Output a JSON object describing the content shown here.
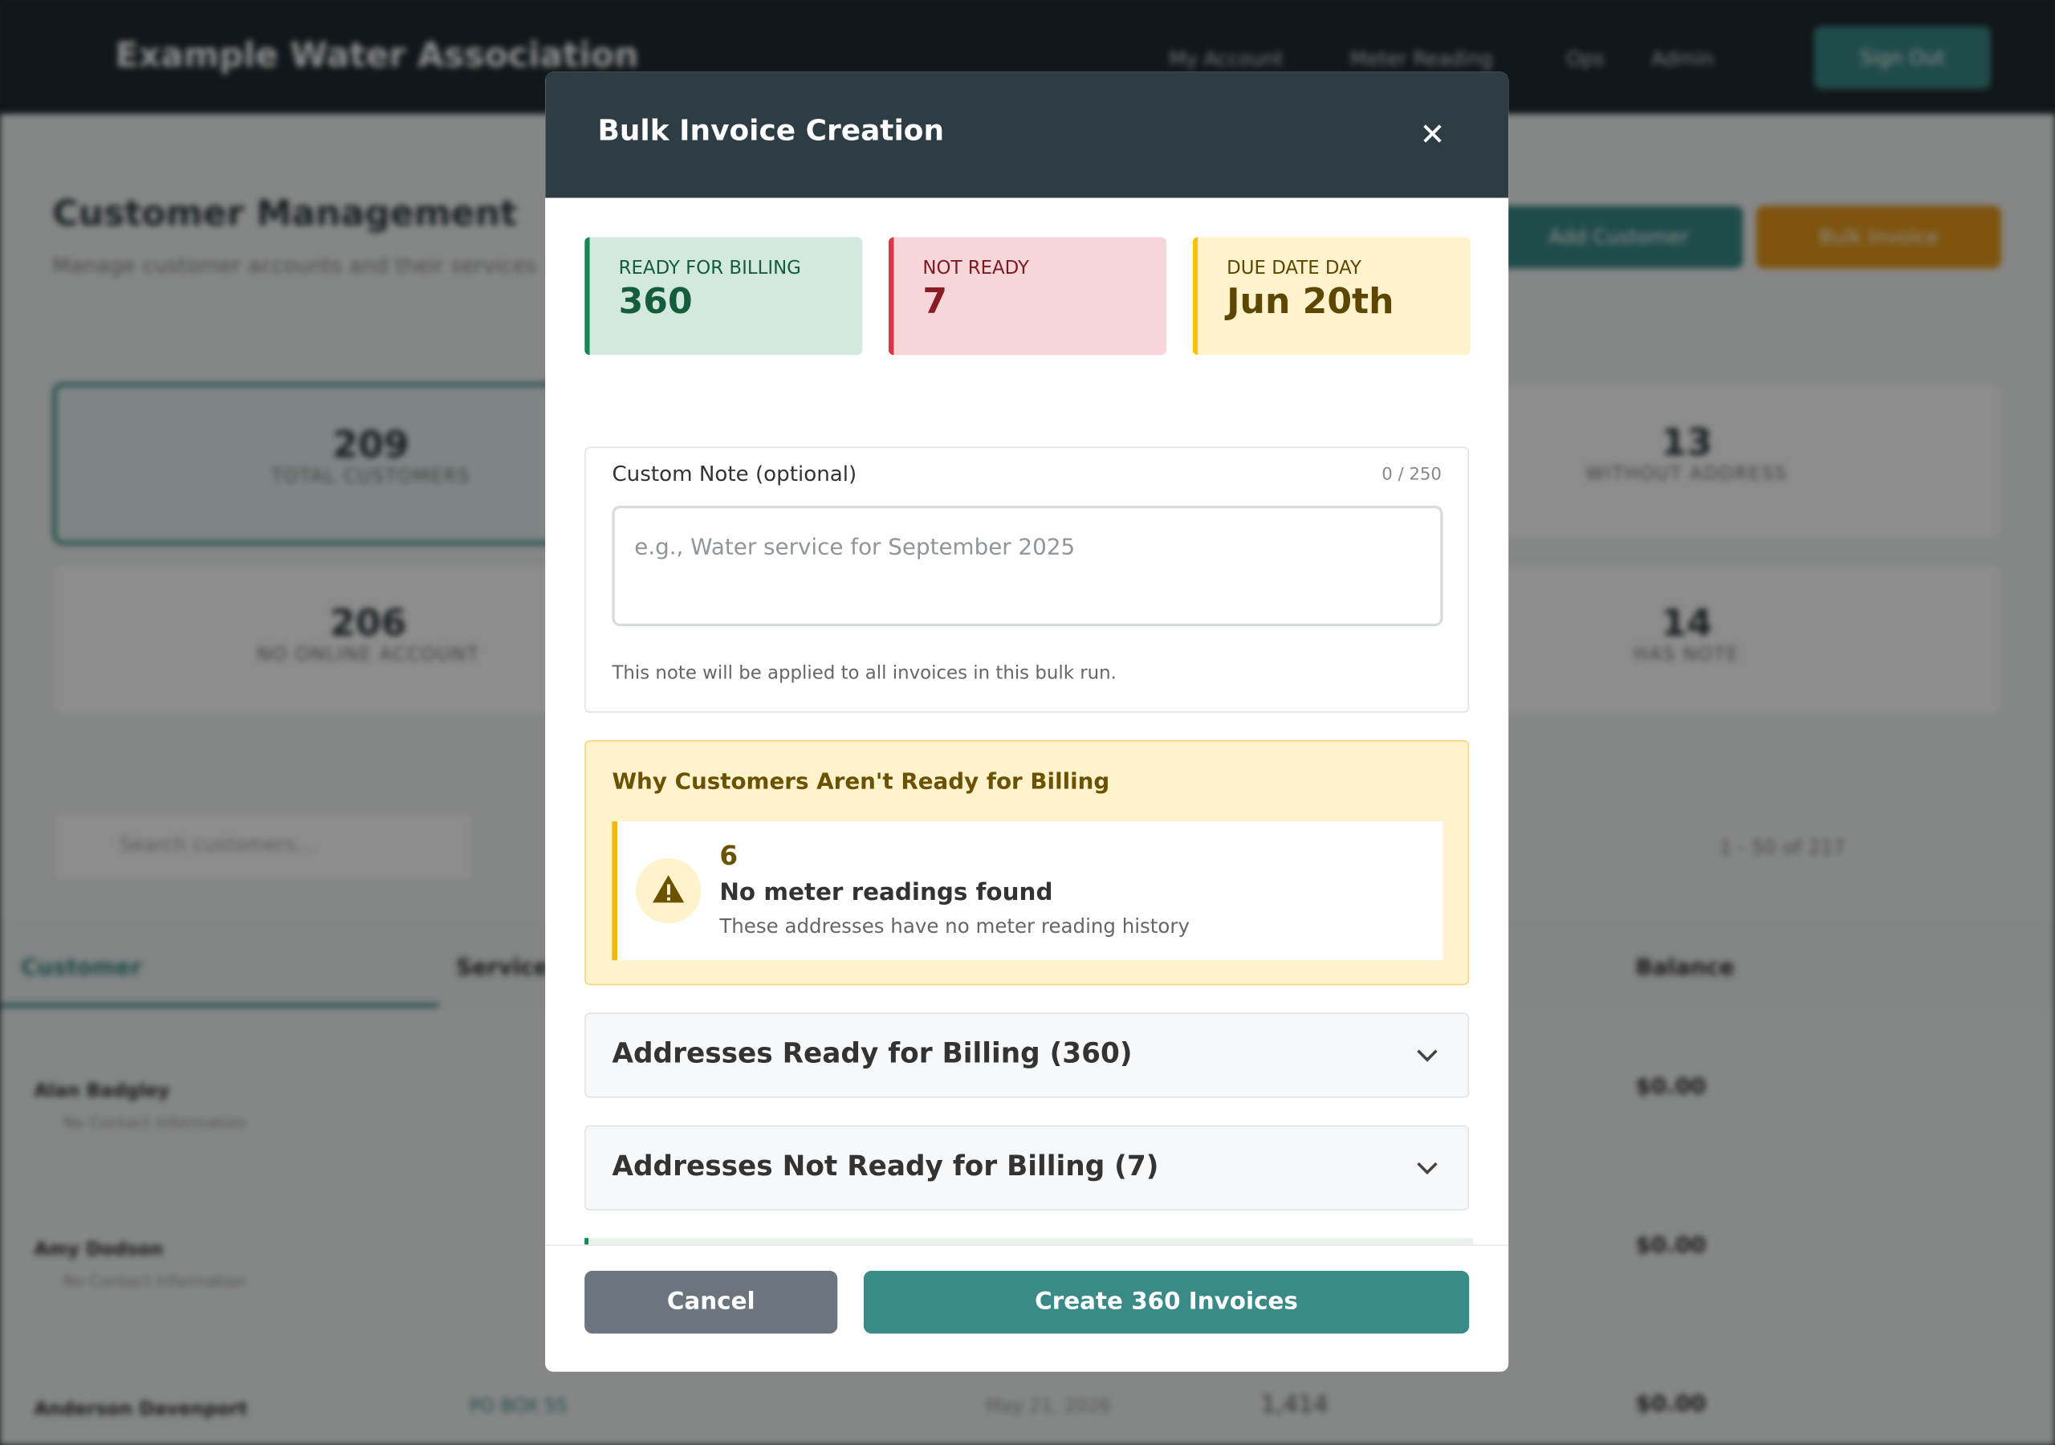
{
  "background": {
    "brand": "Example Water Association",
    "nav": [
      "My Account",
      "Meter Reading",
      "Ops",
      "Admin"
    ],
    "sign_out": "Sign Out",
    "page_title": "Customer Management",
    "page_subtitle": "Manage customer accounts and their services",
    "actions": [
      "Add Customer",
      "Bulk Invoice"
    ],
    "stats": [
      {
        "value": 209,
        "label": "TOTAL CUSTOMERS"
      },
      {
        "value": 13,
        "label": "WITHOUT ADDRESS"
      },
      {
        "value": 206,
        "label": "NO ONLINE ACCOUNT"
      },
      {
        "value": 14,
        "label": "HAS NOTE"
      }
    ],
    "search_placeholder": "Search customers...",
    "pagination": "1 - 50 of 217",
    "columns": [
      "Customer",
      "Service",
      "Balance"
    ],
    "rows": [
      {
        "name": "Alan Badgley",
        "contact": "No Contact Information",
        "balance": "$0.00"
      },
      {
        "name": "Amy Dodson",
        "contact": "No Contact Information",
        "balance": "$0.00"
      },
      {
        "name": "Anderson Davenport",
        "service": "PO BOX 55",
        "date": "May 21, 2026",
        "reading": "1,414",
        "balance": "$0.00"
      }
    ]
  },
  "modal": {
    "title": "Bulk Invoice Creation",
    "cards": [
      {
        "label": "READY FOR BILLING",
        "value": 360
      },
      {
        "label": "NOT READY",
        "value": 7
      },
      {
        "label": "DUE DATE DAY",
        "value": "Jun 20th"
      }
    ],
    "note": {
      "label": "Custom Note (optional)",
      "counter": "0 / 250",
      "placeholder": "e.g., Water service for September 2025",
      "help": "This note will be applied to all invoices in this bulk run."
    },
    "warning": {
      "title": "Why Customers Aren't Ready for Billing",
      "reason": {
        "count": 6,
        "title": "No meter readings found",
        "description": "These addresses have no meter reading history"
      }
    },
    "accordions": [
      "Addresses Ready for Billing (360)",
      "Addresses Not Ready for Billing (7)"
    ],
    "buttons": {
      "cancel": "Cancel",
      "create": "Create 360 Invoices"
    }
  }
}
